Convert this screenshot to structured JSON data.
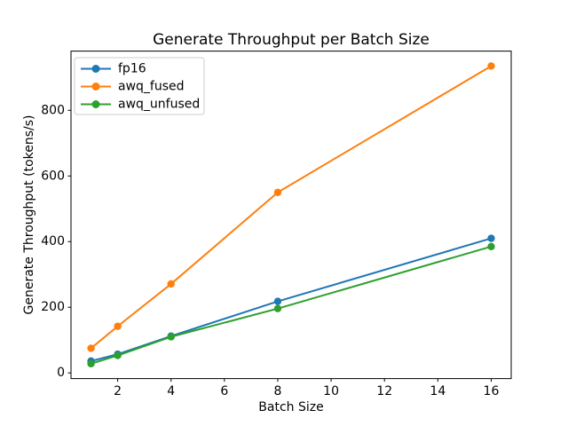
{
  "chart_data": {
    "type": "line",
    "title": "Generate Throughput per Batch Size",
    "xlabel": "Batch Size",
    "ylabel": "Generate Throughput (tokens/s)",
    "x": [
      1,
      2,
      4,
      8,
      16
    ],
    "series": [
      {
        "name": "fp16",
        "color": "#1f77b4",
        "values": [
          36,
          57,
          112,
          218,
          410
        ]
      },
      {
        "name": "awq_fused",
        "color": "#ff7f0e",
        "values": [
          75,
          142,
          271,
          550,
          935
        ]
      },
      {
        "name": "awq_unfused",
        "color": "#2ca02c",
        "values": [
          28,
          53,
          110,
          196,
          385
        ]
      }
    ],
    "xticks": [
      2,
      4,
      6,
      8,
      10,
      12,
      14,
      16
    ],
    "yticks": [
      0,
      200,
      400,
      600,
      800
    ],
    "xlim": [
      0.25,
      16.75
    ],
    "ylim": [
      -17.4,
      980.4
    ],
    "grid": false,
    "legend_position": "upper left",
    "marker": "circle",
    "background_color": "#ffffff"
  }
}
